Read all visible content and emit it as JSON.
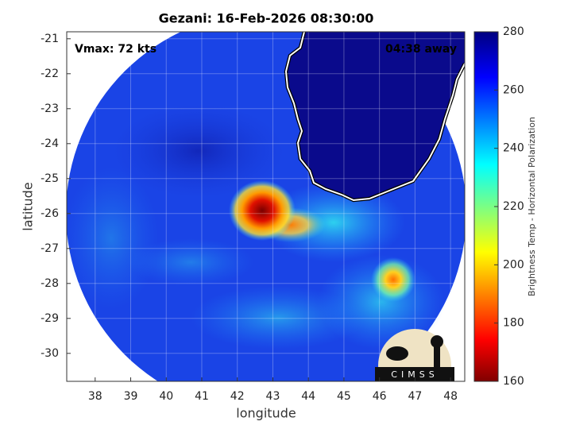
{
  "chart_data": {
    "type": "heatmap",
    "title": "Gezani: 16-Feb-2026 08:30:00",
    "annotations": [
      "Vmax: 72 kts",
      "04:38 away"
    ],
    "x_label": "longitude",
    "y_label": "latitude",
    "xlim": [
      37.2,
      48.4
    ],
    "xticks": [
      38,
      39,
      40,
      41,
      42,
      43,
      44,
      45,
      46,
      47,
      48
    ],
    "ylim": [
      -30.8,
      -20.8
    ],
    "yticks": [
      -30,
      -29,
      -28,
      -27,
      -26,
      -25,
      -24,
      -23,
      -22,
      -21
    ],
    "grid": true,
    "colorbar": {
      "label": "Brightness Temp - Horizontal Polarization",
      "lim": [
        160,
        280
      ],
      "ticks": [
        160,
        180,
        200,
        220,
        240,
        260,
        280
      ],
      "colormap": "jet"
    }
  },
  "logo_text": "CIMSS"
}
